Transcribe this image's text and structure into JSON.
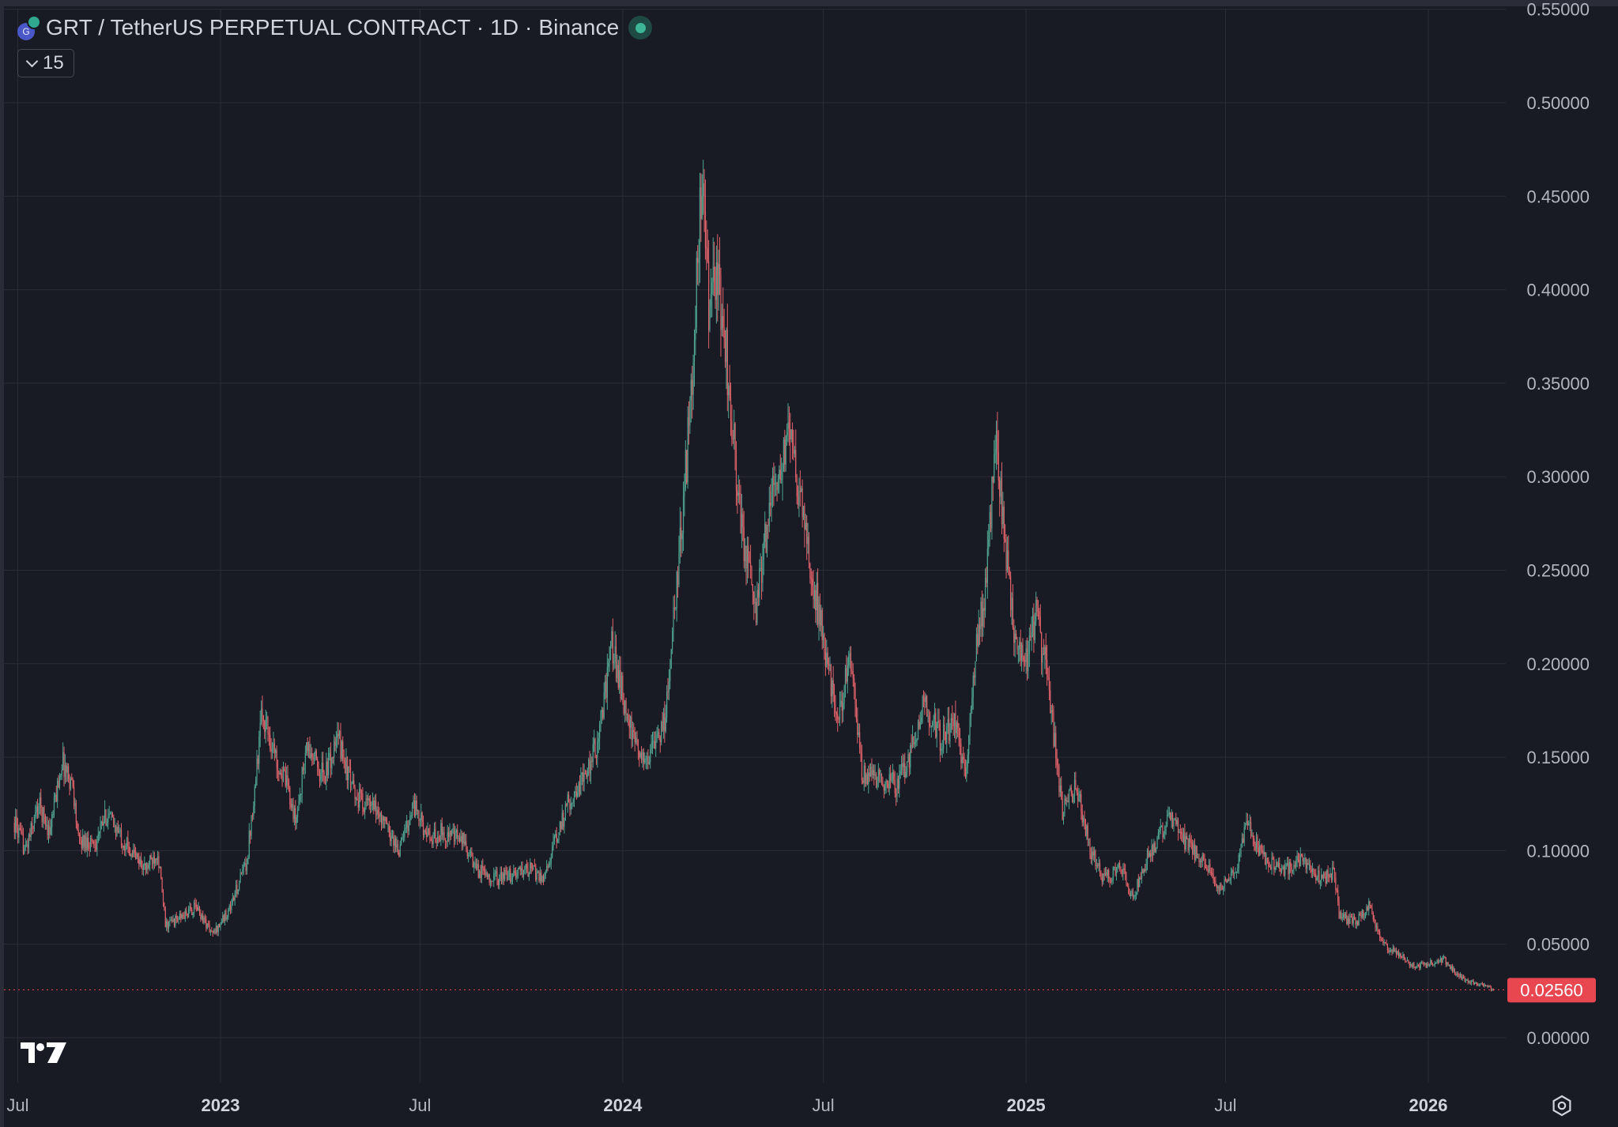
{
  "header": {
    "symbol_title": "GRT / TetherUS PERPETUAL CONTRACT · 1D · Binance",
    "indicator_count": "15"
  },
  "colors": {
    "background": "#181a24",
    "grid": "#2a2d38",
    "up": "#4fa38f",
    "down": "#e0626a",
    "axis_text": "#b2b5be",
    "last_price_bg": "#e8474f"
  },
  "icons": {
    "logo": "tradingview-logo-icon",
    "settings": "settings-gear-icon",
    "symbol": "grt-token-icon",
    "collapse": "chevron-down-icon"
  },
  "chart_data": {
    "type": "candlestick",
    "title": "GRT / TetherUS PERPETUAL CONTRACT · 1D · Binance",
    "interval": "1D",
    "x_ticks": [
      {
        "label": "Jul",
        "date": "2022-07-01",
        "bold": false
      },
      {
        "label": "2023",
        "date": "2023-01-01",
        "bold": true
      },
      {
        "label": "Jul",
        "date": "2023-07-01",
        "bold": false
      },
      {
        "label": "2024",
        "date": "2024-01-01",
        "bold": true
      },
      {
        "label": "Jul",
        "date": "2024-07-01",
        "bold": false
      },
      {
        "label": "2025",
        "date": "2025-01-01",
        "bold": true
      },
      {
        "label": "Jul",
        "date": "2025-07-01",
        "bold": false
      },
      {
        "label": "2026",
        "date": "2026-01-01",
        "bold": true
      }
    ],
    "x_range": [
      "2022-06-28",
      "2026-04-21"
    ],
    "y_ticks": [
      "0.00000",
      "0.05000",
      "0.10000",
      "0.15000",
      "0.20000",
      "0.25000",
      "0.30000",
      "0.35000",
      "0.40000",
      "0.45000",
      "0.50000",
      "0.55000"
    ],
    "ylim": [
      0,
      0.55
    ],
    "grid": true,
    "last_price": "0.02560",
    "price_path": [
      [
        "2022-06-28",
        0.115
      ],
      [
        "2022-07-08",
        0.1
      ],
      [
        "2022-07-20",
        0.125
      ],
      [
        "2022-07-30",
        0.11
      ],
      [
        "2022-08-10",
        0.148
      ],
      [
        "2022-08-20",
        0.135
      ],
      [
        "2022-08-25",
        0.105
      ],
      [
        "2022-09-10",
        0.105
      ],
      [
        "2022-09-20",
        0.12
      ],
      [
        "2022-10-05",
        0.105
      ],
      [
        "2022-10-25",
        0.09
      ],
      [
        "2022-11-05",
        0.1
      ],
      [
        "2022-11-12",
        0.06
      ],
      [
        "2022-11-28",
        0.065
      ],
      [
        "2022-12-10",
        0.07
      ],
      [
        "2022-12-25",
        0.055
      ],
      [
        "2023-01-10",
        0.07
      ],
      [
        "2023-01-25",
        0.095
      ],
      [
        "2023-02-08",
        0.175
      ],
      [
        "2023-02-20",
        0.15
      ],
      [
        "2023-03-05",
        0.13
      ],
      [
        "2023-03-10",
        0.115
      ],
      [
        "2023-03-20",
        0.155
      ],
      [
        "2023-04-05",
        0.14
      ],
      [
        "2023-04-18",
        0.16
      ],
      [
        "2023-05-02",
        0.13
      ],
      [
        "2023-05-25",
        0.12
      ],
      [
        "2023-06-12",
        0.1
      ],
      [
        "2023-06-25",
        0.125
      ],
      [
        "2023-07-10",
        0.105
      ],
      [
        "2023-07-20",
        0.11
      ],
      [
        "2023-08-10",
        0.105
      ],
      [
        "2023-08-20",
        0.09
      ],
      [
        "2023-09-10",
        0.085
      ],
      [
        "2023-10-10",
        0.09
      ],
      [
        "2023-10-20",
        0.085
      ],
      [
        "2023-11-01",
        0.105
      ],
      [
        "2023-11-12",
        0.125
      ],
      [
        "2023-11-28",
        0.14
      ],
      [
        "2023-12-10",
        0.16
      ],
      [
        "2023-12-22",
        0.21
      ],
      [
        "2024-01-02",
        0.18
      ],
      [
        "2024-01-12",
        0.155
      ],
      [
        "2024-01-25",
        0.15
      ],
      [
        "2024-02-08",
        0.17
      ],
      [
        "2024-02-20",
        0.25
      ],
      [
        "2024-02-28",
        0.31
      ],
      [
        "2024-03-08",
        0.4
      ],
      [
        "2024-03-13",
        0.46
      ],
      [
        "2024-03-20",
        0.38
      ],
      [
        "2024-03-26",
        0.41
      ],
      [
        "2024-04-02",
        0.38
      ],
      [
        "2024-04-12",
        0.31
      ],
      [
        "2024-04-20",
        0.26
      ],
      [
        "2024-05-01",
        0.23
      ],
      [
        "2024-05-12",
        0.28
      ],
      [
        "2024-05-22",
        0.3
      ],
      [
        "2024-06-01",
        0.32
      ],
      [
        "2024-06-10",
        0.29
      ],
      [
        "2024-06-20",
        0.25
      ],
      [
        "2024-07-05",
        0.2
      ],
      [
        "2024-07-15",
        0.17
      ],
      [
        "2024-07-25",
        0.21
      ],
      [
        "2024-08-05",
        0.14
      ],
      [
        "2024-08-20",
        0.14
      ],
      [
        "2024-09-05",
        0.135
      ],
      [
        "2024-09-20",
        0.155
      ],
      [
        "2024-10-01",
        0.18
      ],
      [
        "2024-10-15",
        0.16
      ],
      [
        "2024-10-28",
        0.17
      ],
      [
        "2024-11-08",
        0.14
      ],
      [
        "2024-11-15",
        0.2
      ],
      [
        "2024-11-25",
        0.24
      ],
      [
        "2024-12-05",
        0.32
      ],
      [
        "2024-12-12",
        0.27
      ],
      [
        "2024-12-20",
        0.22
      ],
      [
        "2024-12-31",
        0.2
      ],
      [
        "2025-01-10",
        0.225
      ],
      [
        "2025-01-20",
        0.195
      ],
      [
        "2025-02-03",
        0.12
      ],
      [
        "2025-02-15",
        0.135
      ],
      [
        "2025-03-01",
        0.1
      ],
      [
        "2025-03-12",
        0.085
      ],
      [
        "2025-03-28",
        0.09
      ],
      [
        "2025-04-08",
        0.075
      ],
      [
        "2025-04-20",
        0.095
      ],
      [
        "2025-05-12",
        0.12
      ],
      [
        "2025-05-25",
        0.105
      ],
      [
        "2025-06-10",
        0.095
      ],
      [
        "2025-06-25",
        0.08
      ],
      [
        "2025-07-10",
        0.09
      ],
      [
        "2025-07-20",
        0.115
      ],
      [
        "2025-08-05",
        0.095
      ],
      [
        "2025-08-20",
        0.09
      ],
      [
        "2025-09-10",
        0.095
      ],
      [
        "2025-09-25",
        0.085
      ],
      [
        "2025-10-08",
        0.088
      ],
      [
        "2025-10-12",
        0.065
      ],
      [
        "2025-10-28",
        0.062
      ],
      [
        "2025-11-08",
        0.07
      ],
      [
        "2025-11-20",
        0.05
      ],
      [
        "2025-12-05",
        0.045
      ],
      [
        "2025-12-20",
        0.038
      ],
      [
        "2026-01-05",
        0.04
      ],
      [
        "2026-01-15",
        0.042
      ],
      [
        "2026-01-25",
        0.035
      ],
      [
        "2026-02-05",
        0.03
      ],
      [
        "2026-02-20",
        0.028
      ],
      [
        "2026-03-01",
        0.0256
      ]
    ]
  }
}
